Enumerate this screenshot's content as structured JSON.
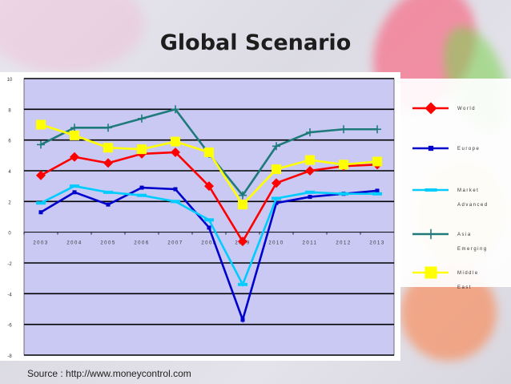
{
  "slide": {
    "title": "Global Scenario",
    "source": "Source : http://www.moneycontrol.com"
  },
  "chart_data": {
    "type": "line",
    "categories": [
      "2003",
      "2004",
      "2005",
      "2006",
      "2007",
      "2008",
      "2009",
      "2010",
      "2011",
      "2012",
      "2013"
    ],
    "ylim": [
      -8,
      10
    ],
    "yticks": [
      10,
      8,
      6,
      4,
      2,
      0,
      -2,
      -4,
      -6,
      -8
    ],
    "grid": true,
    "legend_position": "right",
    "series": [
      {
        "name": "World",
        "color": "#ff0000",
        "marker": "diamond",
        "values": [
          3.7,
          4.9,
          4.5,
          5.1,
          5.2,
          3.0,
          -0.6,
          3.2,
          4.0,
          4.3,
          4.4
        ]
      },
      {
        "name": "Europe",
        "color": "#0000cc",
        "marker": "square-small",
        "values": [
          1.3,
          2.6,
          1.8,
          2.9,
          2.8,
          0.3,
          -5.7,
          1.9,
          2.3,
          2.5,
          2.7
        ]
      },
      {
        "name": "Market Advanced",
        "color": "#00ccff",
        "marker": "dash",
        "values": [
          1.9,
          3.0,
          2.6,
          2.4,
          2.0,
          0.8,
          -3.4,
          2.2,
          2.6,
          2.5,
          2.5
        ]
      },
      {
        "name": "Asia Emerging",
        "color": "#1f7b7b",
        "marker": "plus",
        "values": [
          5.7,
          6.8,
          6.8,
          7.4,
          8.0,
          5.1,
          2.4,
          5.6,
          6.5,
          6.7,
          6.7
        ]
      },
      {
        "name": "Middle East",
        "color": "#ffff00",
        "marker": "square",
        "values": [
          7.0,
          6.3,
          5.5,
          5.4,
          5.9,
          5.2,
          1.8,
          4.1,
          4.7,
          4.4,
          4.6
        ]
      }
    ]
  }
}
